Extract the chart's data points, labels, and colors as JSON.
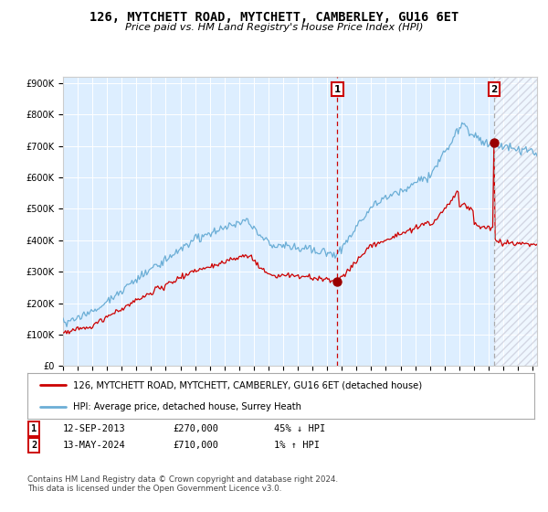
{
  "title": "126, MYTCHETT ROAD, MYTCHETT, CAMBERLEY, GU16 6ET",
  "subtitle": "Price paid vs. HM Land Registry's House Price Index (HPI)",
  "ylim": [
    0,
    900000
  ],
  "ytick_values": [
    0,
    100000,
    200000,
    300000,
    400000,
    500000,
    600000,
    700000,
    800000,
    900000
  ],
  "ytick_labels": [
    "£0",
    "£100K",
    "£200K",
    "£300K",
    "£400K",
    "£500K",
    "£600K",
    "£700K",
    "£800K",
    "£900K"
  ],
  "hpi_color": "#6baed6",
  "price_color": "#cc0000",
  "marker_color": "#990000",
  "vline1_color": "#cc0000",
  "vline2_color": "#aaaaaa",
  "bg_color": "#ddeeff",
  "sale1_x": 2013.7,
  "sale1_price": 270000,
  "sale2_x": 2024.37,
  "sale2_price": 710000,
  "legend_label1": "126, MYTCHETT ROAD, MYTCHETT, CAMBERLEY, GU16 6ET (detached house)",
  "legend_label2": "HPI: Average price, detached house, Surrey Heath",
  "copyright_text": "Contains HM Land Registry data © Crown copyright and database right 2024.\nThis data is licensed under the Open Government Licence v3.0.",
  "xlim_start": 1995,
  "xlim_end": 2027.3
}
